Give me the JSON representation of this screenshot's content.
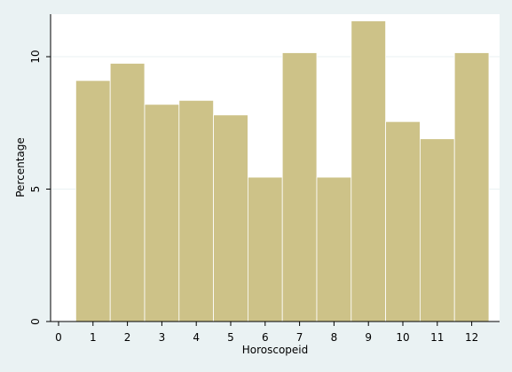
{
  "chart_data": {
    "type": "bar",
    "x": [
      1,
      2,
      3,
      4,
      5,
      6,
      7,
      8,
      9,
      10,
      11,
      12
    ],
    "values": [
      9.1,
      9.75,
      8.2,
      8.35,
      7.8,
      5.45,
      10.15,
      5.45,
      11.35,
      7.55,
      6.9,
      10.15
    ],
    "xlabel": "Horoscopeid",
    "ylabel": "Percentage",
    "xticks": [
      "0",
      "1",
      "2",
      "3",
      "4",
      "5",
      "6",
      "7",
      "8",
      "9",
      "10",
      "11",
      "12"
    ],
    "yticks": [
      "0",
      "5",
      "10"
    ],
    "xlim": [
      0,
      12
    ],
    "ylim": [
      0,
      12
    ],
    "grid": true,
    "colors": {
      "bar_fill": "#cdc288",
      "bar_stroke": "#ffffff",
      "plot_background": "#ffffff",
      "outer_background": "#eaf2f3",
      "grid": "#eaf2f3"
    }
  }
}
